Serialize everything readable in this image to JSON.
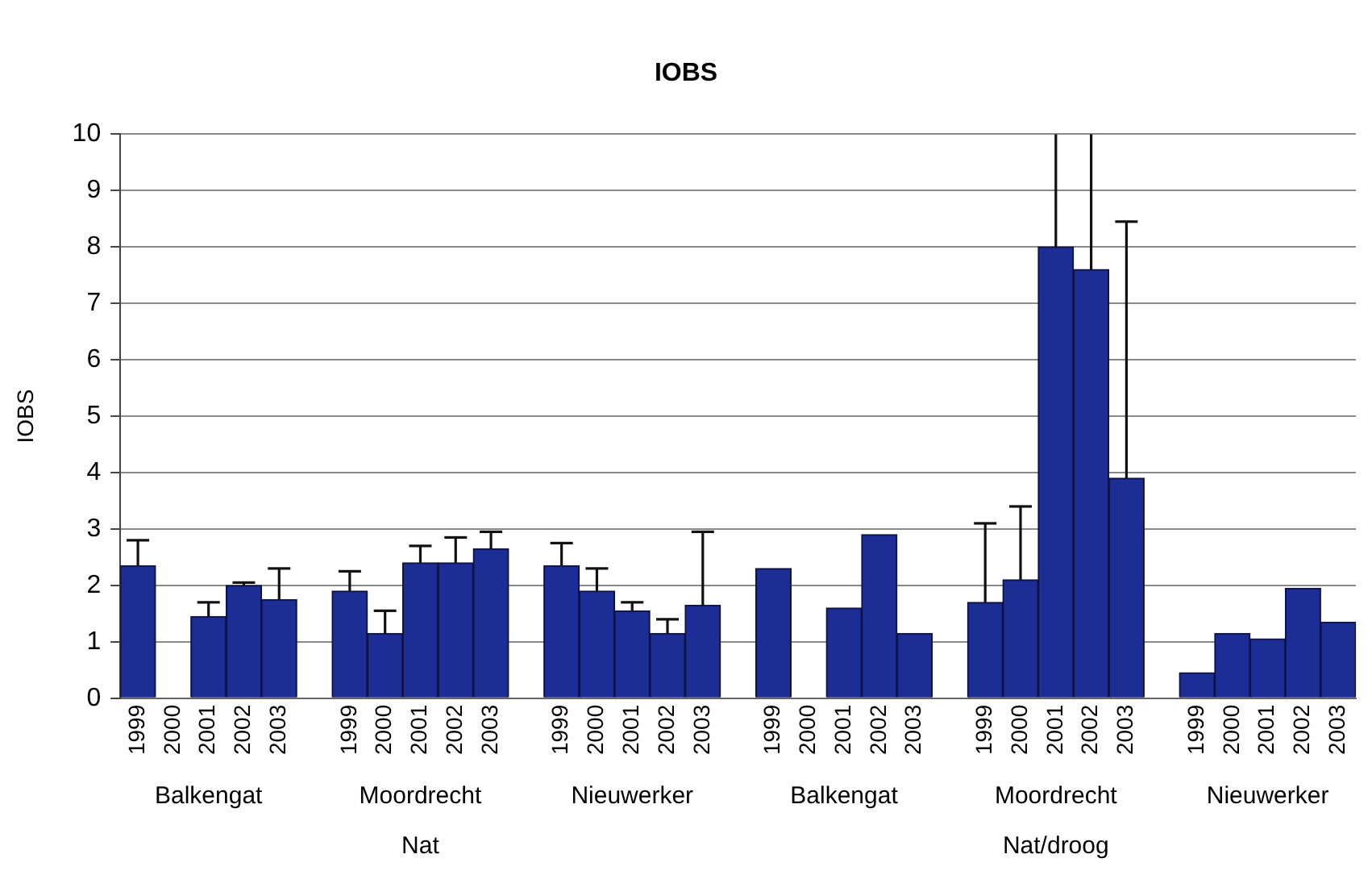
{
  "chart_data": {
    "type": "bar",
    "title": "IOBS",
    "ylabel": "IOBS",
    "categories": [
      "1999",
      "2000",
      "2001",
      "2002",
      "2003",
      null,
      "1999",
      "2000",
      "2001",
      "2002",
      "2003",
      null,
      "1999",
      "2000",
      "2001",
      "2002",
      "2003",
      null,
      "1999",
      "2000",
      "2001",
      "2002",
      "2003",
      null,
      "1999",
      "2000",
      "2001",
      "2002",
      "2003",
      null,
      "1999",
      "2000",
      "2001",
      "2002",
      "2003"
    ],
    "values": [
      2.35,
      null,
      1.45,
      2.0,
      1.75,
      null,
      1.9,
      1.15,
      2.4,
      2.4,
      2.65,
      null,
      2.35,
      1.9,
      1.55,
      1.15,
      1.65,
      null,
      2.3,
      null,
      1.6,
      2.9,
      1.15,
      null,
      1.7,
      2.1,
      8.0,
      7.6,
      3.9,
      null,
      0.45,
      1.15,
      1.05,
      1.95,
      1.35
    ],
    "errors": [
      [
        2.35,
        2.8
      ],
      null,
      [
        1.45,
        1.7
      ],
      [
        2.0,
        2.05
      ],
      [
        1.75,
        2.3
      ],
      null,
      [
        1.9,
        2.25
      ],
      [
        1.15,
        1.55
      ],
      [
        2.4,
        2.7
      ],
      [
        2.4,
        2.85
      ],
      [
        2.65,
        2.95
      ],
      null,
      [
        2.35,
        2.75
      ],
      [
        1.9,
        2.3
      ],
      [
        1.55,
        1.7
      ],
      [
        1.15,
        1.4
      ],
      [
        1.65,
        2.95
      ],
      null,
      null,
      null,
      null,
      null,
      null,
      null,
      [
        1.7,
        3.1
      ],
      [
        2.1,
        3.4
      ],
      [
        8.0,
        10
      ],
      [
        7.6,
        10
      ],
      [
        3.9,
        8.45
      ],
      null,
      null,
      null,
      null,
      null,
      null
    ],
    "color": "#1c2e96",
    "ylim": [
      0,
      10
    ],
    "yticks": [
      0,
      1,
      2,
      3,
      4,
      5,
      6,
      7,
      8,
      9,
      10
    ],
    "grid": "y",
    "annotations": [
      "Balkengat",
      "Moordrecht",
      "Nieuwerker",
      "Balkengat",
      "Moordrecht",
      "Nieuwerker",
      "Nat",
      "Nat/droog"
    ]
  }
}
